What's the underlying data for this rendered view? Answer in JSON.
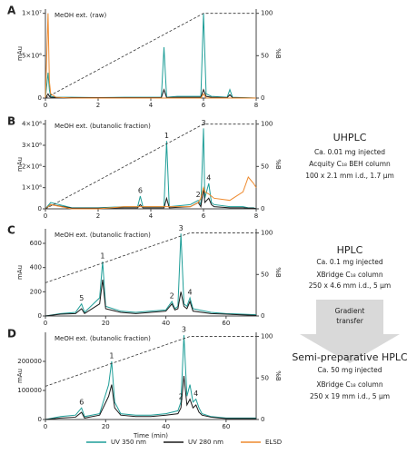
{
  "chart_data": [
    {
      "type": "line",
      "panel": "A",
      "label": "MeOH ext. (raw)",
      "ylabel": "mAu",
      "y2label": "%B",
      "x": [
        0,
        0.1,
        0.15,
        0.2,
        0.4,
        1.0,
        2.0,
        3.0,
        4.4,
        4.5,
        4.6,
        5.0,
        5.9,
        6.0,
        6.1,
        6.3,
        6.9,
        7.0,
        7.1,
        8
      ],
      "xlim": [
        0,
        8
      ],
      "xticks": [
        0,
        2,
        4,
        6,
        8
      ],
      "ylim": [
        0,
        10500000
      ],
      "yticks": [
        0,
        {
          "value": 5000000,
          "label": "5×10⁶"
        },
        {
          "value": 10000000,
          "label": "1×10⁷"
        }
      ],
      "y2lim": [
        0,
        105
      ],
      "y2ticks": [
        0,
        50,
        100
      ],
      "series": [
        {
          "color": "#1f9e98",
          "values": [
            0,
            3000000,
            1000000,
            200000,
            100000,
            100000,
            50000,
            100000,
            100000,
            6000000,
            100000,
            200000,
            200000,
            10000000,
            500000,
            200000,
            100000,
            1000000,
            100000,
            0
          ]
        },
        {
          "color": "#1a1a1a",
          "values": [
            0,
            500000,
            200000,
            100000,
            50000,
            50000,
            50000,
            50000,
            50000,
            1000000,
            50000,
            100000,
            100000,
            1000000,
            200000,
            100000,
            50000,
            400000,
            50000,
            0
          ]
        },
        {
          "color": "#ee8a2e",
          "values": [
            0,
            10000000,
            2000000,
            500000,
            100000,
            0,
            0,
            0,
            0,
            0,
            0,
            0,
            0,
            500000,
            0,
            0,
            0,
            0,
            0,
            0
          ]
        },
        {
          "color": "#333333",
          "dash": true,
          "axis": "y2",
          "values": [
            0,
            1.7,
            2.5,
            3.3,
            6.7,
            16.7,
            33.3,
            50,
            73.3,
            75,
            76.7,
            83.3,
            98.3,
            100,
            100,
            100,
            100,
            100,
            100,
            100
          ]
        }
      ],
      "peak_labels": [
        null,
        null,
        null,
        null,
        null,
        null,
        null,
        null,
        null,
        null,
        null,
        null,
        null,
        null,
        null,
        null,
        null,
        null,
        null,
        null
      ]
    },
    {
      "type": "line",
      "panel": "B",
      "label": "MeOH ext. (butanolic fraction)",
      "ylabel": "mAu",
      "y2label": "%B",
      "x": [
        0,
        0.2,
        1,
        2,
        3,
        3.5,
        3.6,
        3.7,
        4.5,
        4.6,
        4.7,
        5.5,
        5.8,
        5.9,
        6.0,
        6.05,
        6.2,
        6.3,
        6.4,
        7,
        7.5,
        7.7,
        7.9,
        8
      ],
      "xlim": [
        0,
        8
      ],
      "xticks": [
        0,
        2,
        4,
        6,
        8
      ],
      "ylim": [
        0,
        4200000
      ],
      "yticks": [
        0,
        {
          "value": 1000000,
          "label": "1×10⁶"
        },
        {
          "value": 2000000,
          "label": "2×10⁶"
        },
        {
          "value": 3000000,
          "label": "3×10⁶"
        },
        {
          "value": 4000000,
          "label": "4×10⁶"
        }
      ],
      "y2lim": [
        0,
        105
      ],
      "y2ticks": [
        0,
        50,
        100
      ],
      "series": [
        {
          "color": "#1f9e98",
          "values": [
            0,
            300000,
            50000,
            50000,
            100000,
            100000,
            600000,
            100000,
            100000,
            3200000,
            100000,
            200000,
            400000,
            200000,
            3800000,
            500000,
            1200000,
            300000,
            200000,
            100000,
            100000,
            50000,
            50000,
            0
          ]
        },
        {
          "color": "#1a1a1a",
          "values": [
            0,
            200000,
            30000,
            30000,
            50000,
            50000,
            200000,
            50000,
            50000,
            500000,
            50000,
            100000,
            300000,
            100000,
            1000000,
            300000,
            500000,
            200000,
            100000,
            50000,
            50000,
            30000,
            30000,
            0
          ]
        },
        {
          "color": "#ee8a2e",
          "values": [
            0,
            200000,
            0,
            0,
            100000,
            100000,
            100000,
            100000,
            100000,
            100000,
            100000,
            100000,
            300000,
            500000,
            1000000,
            800000,
            700000,
            600000,
            500000,
            400000,
            800000,
            1500000,
            1200000,
            1000000
          ]
        },
        {
          "color": "#333333",
          "dash": true,
          "axis": "y2",
          "values": [
            0,
            3.3,
            16.7,
            33.3,
            50,
            58.3,
            60,
            61.7,
            75,
            76.7,
            78.3,
            91.7,
            96.7,
            98.3,
            100,
            100,
            100,
            100,
            100,
            100,
            100,
            100,
            100,
            100
          ]
        }
      ],
      "peak_labels": [
        null,
        null,
        null,
        null,
        null,
        null,
        "6",
        null,
        null,
        "1",
        null,
        null,
        "2",
        null,
        "3",
        null,
        "4",
        null,
        null,
        null,
        null,
        null,
        null,
        null
      ]
    },
    {
      "type": "line",
      "panel": "C",
      "label": "MeOH ext. (butanolic fraction)",
      "ylabel": "mAu",
      "y2label": "%B",
      "x": [
        0,
        5,
        10,
        12,
        13,
        18,
        19,
        20,
        25,
        30,
        35,
        40,
        42,
        43,
        44,
        45,
        46,
        47,
        48,
        49,
        55,
        60,
        70
      ],
      "xlim": [
        0,
        70
      ],
      "xticks": [
        0,
        20,
        40,
        60
      ],
      "ylim": [
        0,
        720
      ],
      "yticks": [
        0,
        200,
        400,
        600
      ],
      "y2lim": [
        0,
        105
      ],
      "y2ticks": [
        0,
        50,
        100
      ],
      "series": [
        {
          "color": "#1f9e98",
          "values": [
            0,
            20,
            30,
            100,
            30,
            150,
            450,
            80,
            40,
            30,
            40,
            50,
            120,
            60,
            80,
            680,
            100,
            80,
            150,
            60,
            30,
            20,
            10
          ]
        },
        {
          "color": "#1a1a1a",
          "values": [
            0,
            15,
            20,
            60,
            20,
            100,
            300,
            60,
            30,
            20,
            30,
            40,
            100,
            50,
            60,
            200,
            80,
            60,
            120,
            40,
            20,
            15,
            5
          ]
        },
        {
          "color": "#333333",
          "dash": true,
          "axis": "y2",
          "values": [
            40,
            46.3,
            52.5,
            55,
            56.3,
            62.5,
            63.8,
            65,
            71.3,
            77.5,
            83.8,
            90,
            92.5,
            93.8,
            95,
            96.3,
            97.5,
            98.8,
            100,
            100,
            100,
            100,
            100
          ]
        }
      ],
      "peak_labels": [
        null,
        null,
        null,
        "5",
        null,
        null,
        "1",
        null,
        null,
        null,
        null,
        null,
        "2",
        null,
        null,
        "3",
        null,
        null,
        "4",
        null,
        null,
        null,
        null
      ]
    },
    {
      "type": "line",
      "panel": "D",
      "label": "MeOH ext. (butanolic fraction)",
      "ylabel": "mAu",
      "y2label": "%B",
      "xlabel": "Time (min)",
      "x": [
        0,
        5,
        10,
        12,
        13,
        18,
        21,
        22,
        23,
        25,
        30,
        35,
        40,
        44,
        45,
        46,
        47,
        48,
        49,
        50,
        51,
        52,
        55,
        60,
        70
      ],
      "xlim": [
        0,
        70
      ],
      "xticks": [
        0,
        20,
        40,
        60
      ],
      "ylim": [
        0,
        300000
      ],
      "yticks": [
        0,
        100000,
        200000
      ],
      "y2lim": [
        0,
        105
      ],
      "y2ticks": [
        0,
        50,
        100
      ],
      "series": [
        {
          "color": "#1f9e98",
          "values": [
            0,
            10000,
            15000,
            40000,
            10000,
            20000,
            120000,
            200000,
            60000,
            20000,
            15000,
            15000,
            20000,
            30000,
            60000,
            290000,
            80000,
            120000,
            60000,
            70000,
            40000,
            20000,
            10000,
            5000,
            5000
          ]
        },
        {
          "color": "#1a1a1a",
          "values": [
            0,
            5000,
            8000,
            25000,
            5000,
            15000,
            80000,
            120000,
            40000,
            15000,
            10000,
            10000,
            15000,
            20000,
            40000,
            150000,
            50000,
            70000,
            40000,
            50000,
            25000,
            15000,
            8000,
            3000,
            3000
          ]
        },
        {
          "color": "#333333",
          "dash": true,
          "axis": "y2",
          "values": [
            40,
            46.25,
            52.5,
            55,
            56.25,
            62.5,
            66.25,
            67.5,
            68.75,
            71.25,
            77.5,
            83.75,
            90,
            95,
            96.25,
            97.5,
            98.75,
            100,
            100,
            100,
            100,
            100,
            100,
            100,
            100
          ]
        }
      ],
      "peak_labels": [
        null,
        null,
        null,
        "6",
        null,
        null,
        null,
        "1",
        null,
        null,
        null,
        null,
        null,
        null,
        "2",
        "3",
        null,
        null,
        null,
        "4",
        null,
        null,
        null,
        null,
        null
      ]
    }
  ],
  "legend": [
    {
      "name": "UV 350 nm",
      "color": "#1f9e98"
    },
    {
      "name": "UV 280 nm",
      "color": "#1a1a1a"
    },
    {
      "name": "ELSD",
      "color": "#ee8a2e"
    }
  ],
  "uhplc": {
    "title": "UHPLC",
    "lines": [
      "Ca. 0.01 mg injected",
      "Acquity C₁₈ BEH column",
      "100 x 2.1 mm i.d., 1.7 µm"
    ]
  },
  "hplc": {
    "title": "HPLC",
    "lines": [
      "Ca. 0.1 mg injected",
      "XBridge C₁₈ column",
      "250 x 4.6 mm i.d., 5 µm"
    ]
  },
  "transfer": [
    "Gradient",
    "transfer"
  ],
  "semiprep": {
    "title": "Semi-preparative HPLC",
    "lines": [
      "Ca. 50 mg injected",
      "XBridge C₁₈ column",
      "250 x 19 mm i.d., 5 µm"
    ]
  }
}
